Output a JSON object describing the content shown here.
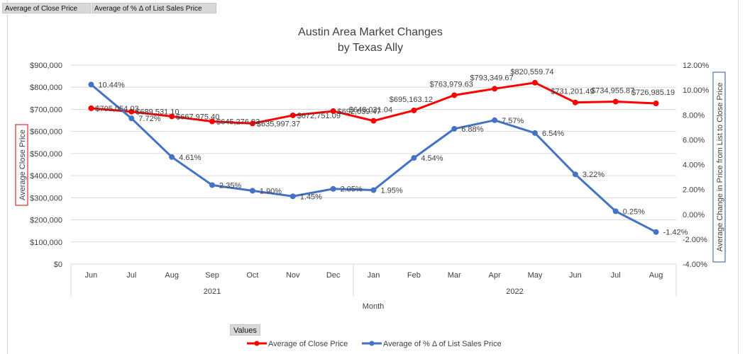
{
  "field_buttons": [
    "Average of Close Price",
    "Average of % Δ of List Sales Price"
  ],
  "values_button": "Values",
  "chart_data": {
    "type": "line",
    "title": "Austin Area Market Changes",
    "subtitle": "by Texas Ally",
    "xlabel": "Month",
    "ylabel": "Average Close Price",
    "y2label": "Average Change in Price from List to Close Price",
    "categories": [
      "Jun",
      "Jul",
      "Aug",
      "Sep",
      "Oct",
      "Nov",
      "Dec",
      "Jan",
      "Feb",
      "Mar",
      "Apr",
      "May",
      "Jun",
      "Jul",
      "Aug"
    ],
    "year_groups": [
      {
        "label": "2021",
        "count": 7
      },
      {
        "label": "2022",
        "count": 8
      }
    ],
    "ylim": [
      0,
      900000
    ],
    "yticks": [
      0,
      100000,
      200000,
      300000,
      400000,
      500000,
      600000,
      700000,
      800000,
      900000
    ],
    "ytick_labels": [
      "$0",
      "$100,000",
      "$200,000",
      "$300,000",
      "$400,000",
      "$500,000",
      "$600,000",
      "$700,000",
      "$800,000",
      "$900,000"
    ],
    "y2lim": [
      -4,
      12
    ],
    "y2ticks": [
      -4,
      -2,
      0,
      2,
      4,
      6,
      8,
      10,
      12
    ],
    "y2tick_labels": [
      "-4.00%",
      "-2.00%",
      "0.00%",
      "2.00%",
      "4.00%",
      "6.00%",
      "8.00%",
      "10.00%",
      "12.00%"
    ],
    "grid": true,
    "legend_position": "bottom",
    "series": [
      {
        "name": "Average of Close Price",
        "axis": "left",
        "color": "#ff0000",
        "values": [
          705054.03,
          689531.1,
          667975.4,
          645276.93,
          635997.37,
          672751.09,
          692039.47,
          648031.04,
          695163.12,
          763979.63,
          793349.67,
          820559.74,
          731201.49,
          734955.87,
          726985.19
        ],
        "labels": [
          "$705,054.03",
          "$689,531.10",
          "$667,975.40",
          "$645,276.93",
          "$635,997.37",
          "$672,751.09",
          "$692,039.47",
          "$648,031.04",
          "$695,163.12",
          "$763,979.63",
          "$793,349.67",
          "$820,559.74",
          "$731,201.49",
          "$734,955.87",
          "$726,985.19"
        ]
      },
      {
        "name": "Average of % Δ of List Sales Price",
        "axis": "right",
        "color": "#4472c4",
        "values": [
          10.44,
          7.72,
          4.61,
          2.35,
          1.9,
          1.45,
          2.05,
          1.95,
          4.54,
          6.88,
          7.57,
          6.54,
          3.22,
          0.25,
          -1.42
        ],
        "labels": [
          "10.44%",
          "7.72%",
          "4.61%",
          "2.35%",
          "1.90%",
          "1.45%",
          "2.05%",
          "1.95%",
          "4.54%",
          "6.88%",
          "7.57%",
          "6.54%",
          "3.22%",
          "0.25%",
          "-1.42%"
        ]
      }
    ]
  }
}
